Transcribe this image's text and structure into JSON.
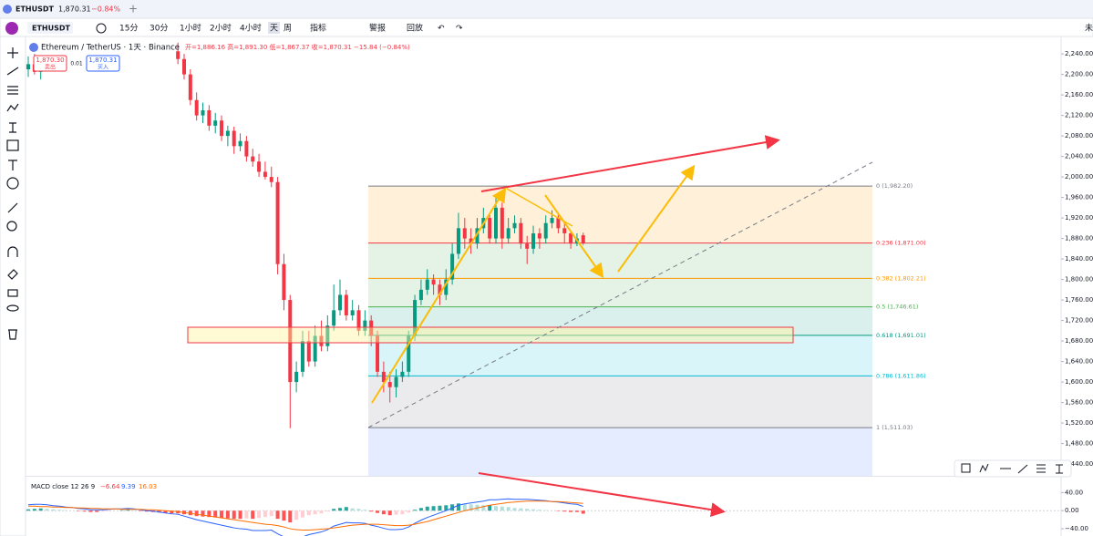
{
  "tab": {
    "title": "ETHUSDT",
    "price": "1,870.31",
    "change": "−0.84%"
  },
  "toolbar": {
    "symbol": "ETHUSDT",
    "intervals": [
      "15分",
      "30分",
      "1小时",
      "2小时",
      "4小时",
      "天",
      "周"
    ],
    "indicators": "指标",
    "alert": "警报",
    "replay": "回放"
  },
  "corner": "未",
  "legend": {
    "title": "Ethereum / TetherUS · 1天 · Binance",
    "ohlc": "开=1,886.16 高=1,891.30 低=1,867.37 收=1,870.31 −15.84 (−0.84%)",
    "sell_price": "1,870.30",
    "sell": "卖出",
    "spread": "0.01",
    "buy_price": "1,870.31",
    "buy": "买入"
  },
  "chart_data": {
    "type": "candlestick",
    "ylim": [
      1417,
      2274
    ],
    "yticks": [
      {
        "value": 2240,
        "label": "2,240.00"
      },
      {
        "value": 2200,
        "label": "2,200.00"
      },
      {
        "value": 2160,
        "label": "2,160.00"
      },
      {
        "value": 2120,
        "label": "2,120.00"
      },
      {
        "value": 2080,
        "label": "2,080.00"
      },
      {
        "value": 2040,
        "label": "2,040.00"
      },
      {
        "value": 2000,
        "label": "2,000.00"
      },
      {
        "value": 1960,
        "label": "1,960.00"
      },
      {
        "value": 1920,
        "label": "1,920.00"
      },
      {
        "value": 1880,
        "label": "1,880.00"
      },
      {
        "value": 1840,
        "label": "1,840.00"
      },
      {
        "value": 1800,
        "label": "1,800.00"
      },
      {
        "value": 1760,
        "label": "1,760.00"
      },
      {
        "value": 1720,
        "label": "1,720.00"
      },
      {
        "value": 1680,
        "label": "1,680.00"
      },
      {
        "value": 1640,
        "label": "1,640.00"
      },
      {
        "value": 1600,
        "label": "1,600.00"
      },
      {
        "value": 1560,
        "label": "1,560.00"
      },
      {
        "value": 1520,
        "label": "1,520.00"
      },
      {
        "value": 1480,
        "label": "1,480.00"
      },
      {
        "value": 1440,
        "label": "1,440.00"
      }
    ],
    "up_color": "#089981",
    "down_color": "#f23645",
    "candles": [
      [
        2210,
        2235,
        2195,
        2220
      ],
      [
        2220,
        2240,
        2200,
        2205
      ],
      [
        2205,
        2230,
        2190,
        2215
      ],
      null,
      null,
      null,
      null,
      null,
      null,
      null,
      null,
      null,
      null,
      null,
      null,
      null,
      null,
      null,
      null,
      null,
      null,
      null,
      null,
      null,
      [
        2245,
        2262,
        2220,
        2230
      ],
      [
        2230,
        2240,
        2190,
        2200
      ],
      [
        2200,
        2210,
        2140,
        2150
      ],
      [
        2150,
        2165,
        2110,
        2120
      ],
      [
        2120,
        2145,
        2105,
        2130
      ],
      [
        2130,
        2140,
        2090,
        2100
      ],
      [
        2100,
        2125,
        2085,
        2110
      ],
      [
        2110,
        2120,
        2070,
        2080
      ],
      [
        2080,
        2100,
        2060,
        2090
      ],
      [
        2090,
        2098,
        2045,
        2060
      ],
      [
        2060,
        2085,
        2050,
        2070
      ],
      [
        2070,
        2080,
        2030,
        2040
      ],
      [
        2040,
        2055,
        2020,
        2030
      ],
      [
        2030,
        2045,
        2000,
        2010
      ],
      [
        2010,
        2030,
        1995,
        2000
      ],
      [
        2000,
        2020,
        1980,
        1990
      ],
      [
        1990,
        2000,
        1810,
        1830
      ],
      [
        1830,
        1850,
        1740,
        1760
      ],
      [
        1760,
        1770,
        1510,
        1600
      ],
      [
        1600,
        1640,
        1580,
        1620
      ],
      [
        1620,
        1700,
        1610,
        1680
      ],
      [
        1680,
        1700,
        1630,
        1640
      ],
      [
        1640,
        1710,
        1630,
        1690
      ],
      [
        1690,
        1720,
        1660,
        1670
      ],
      [
        1670,
        1730,
        1660,
        1710
      ],
      [
        1710,
        1790,
        1700,
        1740
      ],
      [
        1740,
        1800,
        1730,
        1770
      ],
      [
        1770,
        1780,
        1720,
        1730
      ],
      [
        1730,
        1760,
        1720,
        1740
      ],
      [
        1740,
        1750,
        1690,
        1700
      ],
      [
        1700,
        1740,
        1690,
        1720
      ],
      [
        1720,
        1730,
        1670,
        1690
      ],
      [
        1690,
        1700,
        1610,
        1620
      ],
      [
        1620,
        1640,
        1580,
        1600
      ],
      [
        1600,
        1620,
        1560,
        1590
      ],
      [
        1590,
        1625,
        1570,
        1610
      ],
      [
        1610,
        1640,
        1600,
        1620
      ],
      [
        1620,
        1700,
        1610,
        1690
      ],
      [
        1690,
        1770,
        1680,
        1760
      ],
      [
        1760,
        1800,
        1750,
        1780
      ],
      [
        1780,
        1820,
        1770,
        1800
      ],
      [
        1800,
        1810,
        1770,
        1790
      ],
      [
        1790,
        1800,
        1750,
        1770
      ],
      [
        1770,
        1820,
        1760,
        1800
      ],
      [
        1800,
        1870,
        1790,
        1850
      ],
      [
        1850,
        1930,
        1840,
        1900
      ],
      [
        1900,
        1920,
        1860,
        1880
      ],
      [
        1880,
        1900,
        1850,
        1870
      ],
      [
        1870,
        1920,
        1860,
        1900
      ],
      [
        1900,
        1940,
        1890,
        1920
      ],
      [
        1920,
        1930,
        1870,
        1880
      ],
      [
        1880,
        1965,
        1870,
        1940
      ],
      [
        1940,
        1950,
        1860,
        1880
      ],
      [
        1880,
        1920,
        1870,
        1900
      ],
      [
        1900,
        1925,
        1890,
        1910
      ],
      [
        1910,
        1920,
        1860,
        1870
      ],
      [
        1870,
        1885,
        1830,
        1860
      ],
      [
        1860,
        1905,
        1850,
        1890
      ],
      [
        1890,
        1900,
        1860,
        1880
      ],
      [
        1880,
        1925,
        1870,
        1910
      ],
      [
        1910,
        1935,
        1900,
        1920
      ],
      [
        1920,
        1930,
        1890,
        1900
      ],
      [
        1900,
        1910,
        1870,
        1890
      ],
      [
        1890,
        1895,
        1860,
        1870
      ],
      [
        1870,
        1890,
        1865,
        1880
      ],
      [
        1886.16,
        1891.3,
        1867.37,
        1870.31
      ]
    ],
    "fib_levels": [
      {
        "label": "0 (1,982.20)",
        "value": 1982.2,
        "color": "#787b86"
      },
      {
        "label": "0.236 (1,871.00)",
        "value": 1871,
        "color": "#f23645"
      },
      {
        "label": "0.382 (1,802.21)",
        "value": 1802.21,
        "color": "#ff9800"
      },
      {
        "label": "0.5 (1,746.61)",
        "value": 1746.61,
        "color": "#4caf50"
      },
      {
        "label": "0.618 (1,691.01)",
        "value": 1691.01,
        "color": "#089981"
      },
      {
        "label": "0.786 (1,611.86)",
        "value": 1611.86,
        "color": "#00bcd4"
      },
      {
        "label": "1 (1,511.03)",
        "value": 1511.03,
        "color": "#787b86"
      }
    ],
    "macd": {
      "title": "MACD close 12 26 9",
      "hist_label": "−6.64",
      "macd_label": "9.39",
      "signal_label": "16.03",
      "ylim": [
        -56,
        75
      ],
      "yticks": [
        {
          "value": 40,
          "label": "40.00"
        },
        {
          "value": 0,
          "label": "0.00"
        },
        {
          "value": -40,
          "label": "−40.00"
        }
      ],
      "hist": [
        3,
        4,
        5,
        4,
        3,
        2,
        1,
        0,
        -1,
        -2,
        -3,
        -3,
        -2,
        -1,
        0,
        1,
        2,
        1,
        -1,
        -2,
        -3,
        -4,
        -5,
        -6,
        -6,
        -8,
        -10,
        -12,
        -13,
        -14,
        -15,
        -16,
        -17,
        -18,
        -18,
        -17,
        -18,
        -16,
        -14,
        -12,
        -18,
        -22,
        -26,
        -20,
        -15,
        -10,
        -8,
        -6,
        -2,
        4,
        6,
        8,
        5,
        4,
        2,
        -2,
        -5,
        -8,
        -10,
        -9,
        -8,
        -4,
        2,
        6,
        9,
        10,
        11,
        12,
        14,
        16,
        15,
        14,
        13,
        12,
        12,
        10,
        9,
        8,
        6,
        5,
        4,
        3,
        2,
        1,
        0,
        -1,
        -2,
        -3,
        -3,
        -6.64
      ],
      "macd": [
        13,
        14,
        14,
        13,
        11,
        10,
        8,
        7,
        5,
        4,
        2,
        2,
        2,
        3,
        4,
        4,
        5,
        4,
        2,
        0,
        -1,
        -3,
        -5,
        -7,
        -8,
        -12,
        -16,
        -20,
        -23,
        -26,
        -29,
        -32,
        -35,
        -38,
        -40,
        -41,
        -44,
        -44,
        -44,
        -43,
        -51,
        -58,
        -66,
        -62,
        -58,
        -53,
        -50,
        -47,
        -42,
        -34,
        -30,
        -26,
        -27,
        -27,
        -28,
        -32,
        -35,
        -39,
        -42,
        -42,
        -41,
        -36,
        -28,
        -21,
        -15,
        -10,
        -5,
        0,
        6,
        12,
        15,
        17,
        19,
        21,
        24,
        24,
        25,
        26,
        25,
        25,
        25,
        24,
        23,
        22,
        20,
        19,
        17,
        15,
        14,
        9.39
      ],
      "signal": [
        10,
        10,
        9,
        9,
        8,
        8,
        7,
        7,
        6,
        6,
        5,
        5,
        4,
        4,
        4,
        3,
        3,
        3,
        3,
        2,
        2,
        1,
        0,
        -1,
        -2,
        -4,
        -6,
        -8,
        -10,
        -12,
        -14,
        -16,
        -18,
        -20,
        -22,
        -24,
        -26,
        -28,
        -30,
        -31,
        -33,
        -36,
        -40,
        -42,
        -43,
        -43,
        -42,
        -41,
        -40,
        -38,
        -36,
        -34,
        -32,
        -31,
        -30,
        -30,
        -30,
        -31,
        -32,
        -33,
        -33,
        -32,
        -30,
        -27,
        -24,
        -20,
        -16,
        -12,
        -8,
        -4,
        0,
        3,
        6,
        9,
        12,
        14,
        16,
        18,
        19,
        20,
        21,
        21,
        21,
        21,
        20,
        20,
        19,
        18,
        17,
        16.03
      ]
    }
  }
}
